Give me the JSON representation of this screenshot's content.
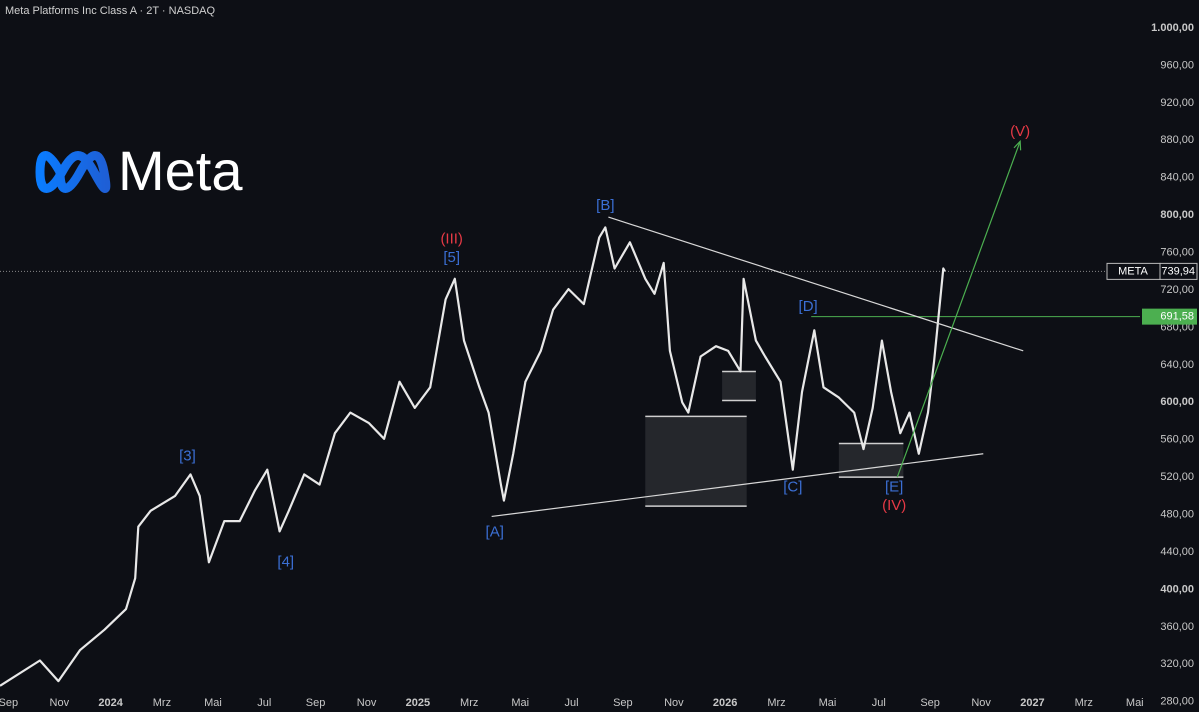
{
  "chart_data": {
    "type": "line",
    "title": "Meta Platforms Inc Class A · 2T · NASDAQ",
    "logo_text": "Meta",
    "color": "#e8e8e8",
    "x": [
      2023.64,
      2023.77,
      2023.83,
      2023.9,
      2023.98,
      2024.05,
      2024.08,
      2024.09,
      2024.13,
      2024.21,
      2024.26,
      2024.29,
      2024.32,
      2024.37,
      2024.42,
      2024.47,
      2024.51,
      2024.55,
      2024.58,
      2024.63,
      2024.68,
      2024.73,
      2024.78,
      2024.84,
      2024.89,
      2024.94,
      2024.99,
      2025.04,
      2025.09,
      2025.12,
      2025.15,
      2025.2,
      2025.23,
      2025.27,
      2025.28,
      2025.31,
      2025.35,
      2025.4,
      2025.44,
      2025.49,
      2025.54,
      2025.59,
      2025.61,
      2025.64,
      2025.69,
      2025.74,
      2025.77,
      2025.8,
      2025.82,
      2025.86,
      2025.88,
      2025.92,
      2025.97,
      2026.01,
      2026.05,
      2026.06,
      2026.1,
      2026.13,
      2026.18,
      2026.22,
      2026.25,
      2026.29,
      2026.32,
      2026.37,
      2026.42,
      2026.45,
      2026.48,
      2026.51,
      2026.54,
      2026.57,
      2026.6,
      2026.63,
      2026.66,
      2026.68,
      2026.71,
      2026.715
    ],
    "values": [
      297,
      324,
      302,
      335,
      357,
      379,
      412,
      467,
      484,
      500,
      523,
      500,
      429,
      473,
      473,
      506,
      528,
      462,
      484,
      523,
      512,
      567,
      589,
      578,
      561,
      622,
      594,
      616,
      710,
      732,
      666,
      616,
      589,
      512,
      495,
      545,
      622,
      655,
      699,
      721,
      705,
      776,
      787,
      743,
      771,
      732,
      716,
      749,
      655,
      600,
      589,
      649,
      660,
      655,
      633,
      732,
      666,
      649,
      622,
      528,
      611,
      677,
      616,
      605,
      589,
      550,
      594,
      666,
      611,
      567,
      589,
      545,
      589,
      644,
      743,
      739.94
    ],
    "xlim": [
      2023.64,
      2027.35
    ],
    "ylim": [
      269,
      1030
    ],
    "xticks": [
      {
        "value": 2023.667,
        "label": "Sep"
      },
      {
        "value": 2023.833,
        "label": "Nov"
      },
      2024,
      {
        "value": 2024.167,
        "label": "Mrz"
      },
      {
        "value": 2024.333,
        "label": "Mai"
      },
      {
        "value": 2024.5,
        "label": "Jul"
      },
      {
        "value": 2024.667,
        "label": "Sep"
      },
      {
        "value": 2024.833,
        "label": "Nov"
      },
      2025,
      {
        "value": 2025.167,
        "label": "Mrz"
      },
      {
        "value": 2025.333,
        "label": "Mai"
      },
      {
        "value": 2025.5,
        "label": "Jul"
      },
      {
        "value": 2025.667,
        "label": "Sep"
      },
      {
        "value": 2025.833,
        "label": "Nov"
      },
      2026,
      {
        "value": 2026.167,
        "label": "Mrz"
      },
      {
        "value": 2026.333,
        "label": "Mai"
      },
      {
        "value": 2026.5,
        "label": "Jul"
      },
      {
        "value": 2026.667,
        "label": "Sep"
      },
      {
        "value": 2026.833,
        "label": "Nov"
      },
      2027,
      {
        "value": 2027.167,
        "label": "Mrz"
      },
      {
        "value": 2027.333,
        "label": "Mai"
      }
    ],
    "yticks": [
      {
        "value": 280,
        "label": "280,00"
      },
      {
        "value": 320,
        "label": "320,00"
      },
      {
        "value": 360,
        "label": "360,00"
      },
      {
        "value": 400,
        "label": "400,00"
      },
      {
        "value": 440,
        "label": "440,00"
      },
      {
        "value": 480,
        "label": "480,00"
      },
      {
        "value": 520,
        "label": "520,00"
      },
      {
        "value": 560,
        "label": "560,00"
      },
      {
        "value": 600,
        "label": "600,00"
      },
      {
        "value": 640,
        "label": "640,00"
      },
      {
        "value": 680,
        "label": "680,00"
      },
      {
        "value": 720,
        "label": "720,00"
      },
      {
        "value": 760,
        "label": "760,00"
      },
      {
        "value": 800,
        "label": "800,00"
      },
      {
        "value": 840,
        "label": "840,00"
      },
      {
        "value": 880,
        "label": "880,00"
      },
      {
        "value": 920,
        "label": "920,00"
      },
      {
        "value": 960,
        "label": "960,00"
      },
      {
        "value": 1000,
        "label": "1.000,00"
      }
    ],
    "last_price": {
      "label": "META",
      "value": 739.94,
      "value_label": "739,94"
    },
    "level": {
      "value": 691.58,
      "value_label": "691,58",
      "x": 2026.28,
      "color": "#4caf50"
    },
    "annotations": [
      {
        "text": "(III)",
        "x": 2025.11,
        "y": 774,
        "color": "#e53945"
      },
      {
        "text": "[5]",
        "x": 2025.11,
        "y": 754,
        "color": "#3b6fd4"
      },
      {
        "text": "[3]",
        "x": 2024.25,
        "y": 542,
        "color": "#3b6fd4"
      },
      {
        "text": "[4]",
        "x": 2024.57,
        "y": 429,
        "color": "#3b6fd4"
      },
      {
        "text": "[A]",
        "x": 2025.25,
        "y": 461,
        "color": "#3b6fd4"
      },
      {
        "text": "[B]",
        "x": 2025.61,
        "y": 810,
        "color": "#3b6fd4"
      },
      {
        "text": "[C]",
        "x": 2026.22,
        "y": 509,
        "color": "#3b6fd4"
      },
      {
        "text": "[D]",
        "x": 2026.27,
        "y": 702,
        "color": "#3b6fd4"
      },
      {
        "text": "[E]",
        "x": 2026.55,
        "y": 509,
        "color": "#3b6fd4"
      },
      {
        "text": "(IV)",
        "x": 2026.55,
        "y": 489,
        "color": "#e53945"
      },
      {
        "text": "(V)",
        "x": 2026.96,
        "y": 889,
        "color": "#e53945"
      }
    ],
    "trendlines": [
      {
        "x": [
          2025.62,
          2026.97
        ],
        "y": [
          798,
          655
        ],
        "color": "#d8d8d8"
      },
      {
        "x": [
          2025.24,
          2026.84
        ],
        "y": [
          478,
          545
        ],
        "color": "#d8d8d8"
      },
      {
        "x": [
          2026.56,
          2026.96
        ],
        "y": [
          520,
          879
        ],
        "color": "#4caf50"
      }
    ],
    "zones": [
      {
        "x": [
          2025.74,
          2026.07
        ],
        "y": [
          585,
          489
        ]
      },
      {
        "x": [
          2025.99,
          2026.1
        ],
        "y": [
          633,
          602
        ]
      },
      {
        "x": [
          2026.37,
          2026.58
        ],
        "y": [
          556,
          520
        ]
      }
    ]
  }
}
